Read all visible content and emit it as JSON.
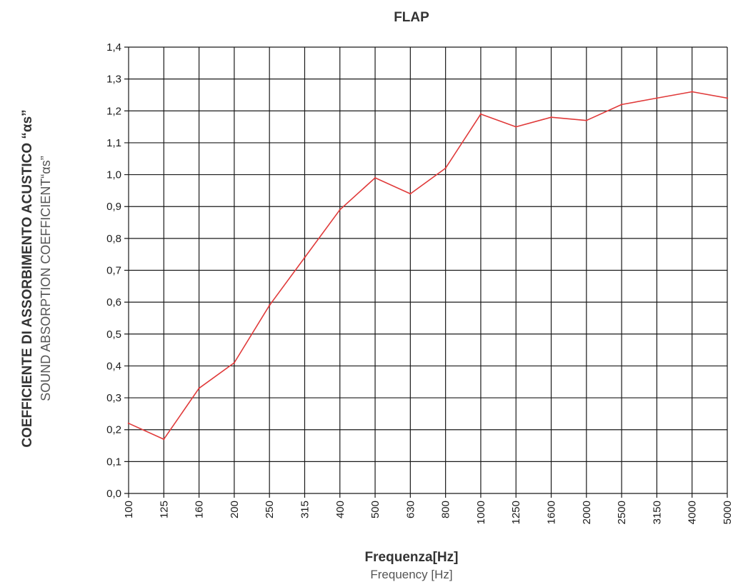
{
  "chart_data": {
    "type": "line",
    "title": "FLAP",
    "xlabel": "Frequenza[Hz]",
    "xlabel_sub": "Frequency [Hz]",
    "ylabel": "COEFFICIENTE DI ASSORBIMENTO ACUSTICO “αs”",
    "ylabel_sub": "SOUND ABSORPTION COEFFICIENT“αs”",
    "categories": [
      "100",
      "125",
      "160",
      "200",
      "250",
      "315",
      "400",
      "500",
      "630",
      "800",
      "1000",
      "1250",
      "1600",
      "2000",
      "2500",
      "3150",
      "4000",
      "5000"
    ],
    "yticks": [
      "0,0",
      "0,1",
      "0,2",
      "0,3",
      "0,4",
      "0,5",
      "0,6",
      "0,7",
      "0,8",
      "0,9",
      "1,0",
      "1,1",
      "1,2",
      "1,3",
      "1,4"
    ],
    "ylim": [
      0,
      1.4
    ],
    "grid": true,
    "series": [
      {
        "color": "#e03a3a",
        "values": [
          0.22,
          0.17,
          0.33,
          0.41,
          0.59,
          0.74,
          0.89,
          0.99,
          0.94,
          1.02,
          1.19,
          1.15,
          1.18,
          1.17,
          1.22,
          1.24,
          1.26,
          1.24
        ]
      }
    ]
  }
}
